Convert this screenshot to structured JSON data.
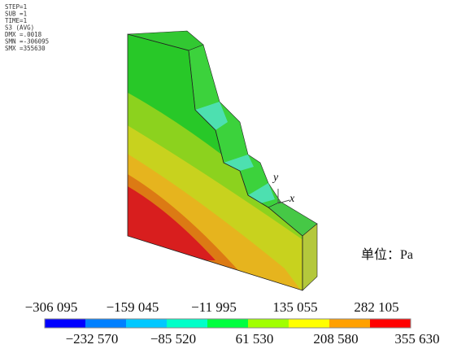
{
  "info": [
    "STEP=1",
    "SUB =1",
    "TIME=1",
    "S3      (AVG)",
    "DMX =.0018",
    "SMN =-306095",
    "SMX =355630"
  ],
  "axes": {
    "y": "y",
    "x": "x"
  },
  "unit": "单位：Pa",
  "colorbar": {
    "colors": [
      "#0000ff",
      "#0080ff",
      "#00c8ff",
      "#00ffc8",
      "#00ff40",
      "#a0ff00",
      "#ffff00",
      "#ffa000",
      "#ff0000"
    ],
    "top_labels": [
      "−306 095",
      "−159 045",
      "−11 995",
      "135 055",
      "282 105"
    ],
    "bottom_labels": [
      "−232 570",
      "−85 520",
      "61 530",
      "208 580",
      "355 630"
    ]
  }
}
